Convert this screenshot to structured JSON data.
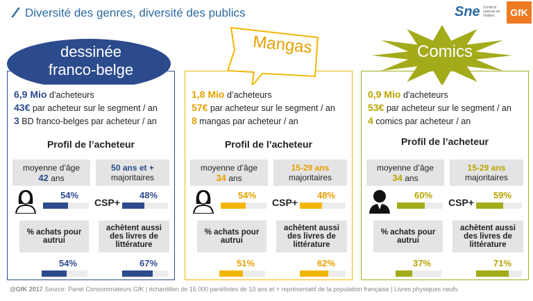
{
  "header": {
    "title": "Diversité des genres, diversité des publics"
  },
  "logos": {
    "sne": "Sne",
    "sne_caption": "Syndicat national de l'édition",
    "gfk": "GfK"
  },
  "panels": [
    {
      "heading": [
        "dessinée",
        "franco-belge"
      ],
      "color": "#2c4b8c",
      "accent": "#2c4b8c",
      "stats": [
        {
          "figure": "6,9 Mio",
          "text": "d’acheteurs"
        },
        {
          "figure": "43€",
          "text": "par acheteur sur le segment / an"
        },
        {
          "figure": "3",
          "text": "BD franco-belges par acheteur / an"
        }
      ],
      "profile_title": "Profil de l’acheteur",
      "age_label": "moyenne d’âge",
      "age_value": "42",
      "age_unit": "ans",
      "majority": "50 ans et +",
      "majority_caption": "majoritaires",
      "csp_label": "CSP+",
      "share_label": "% achats pour autrui",
      "also_label": "achètent aussi des livres de littérature",
      "bars": {
        "values": [
          54,
          48,
          54,
          67
        ],
        "value_labels": [
          "54%",
          "48%",
          "54%",
          "67%"
        ]
      }
    },
    {
      "heading": [
        "Mangas"
      ],
      "color": "#f2b705",
      "accent": "#e8a000",
      "stats": [
        {
          "figure": "1,8 Mio",
          "text": "d’acheteurs"
        },
        {
          "figure": "57€",
          "text": "par acheteur sur le segment / an"
        },
        {
          "figure": "8",
          "text": "mangas par acheteur / an"
        }
      ],
      "profile_title": "Profil de l’acheteur",
      "age_label": "moyenne d’âge",
      "age_value": "34",
      "age_unit": "ans",
      "majority": "15-29 ans",
      "majority_caption": "majoritaires",
      "csp_label": "CSP+",
      "share_label": "% achats pour autrui",
      "also_label": "achètent aussi des livres de littérature",
      "bars": {
        "values": [
          54,
          48,
          51,
          62
        ],
        "value_labels": [
          "54%",
          "48%",
          "51%",
          "62%"
        ]
      }
    },
    {
      "heading": [
        "Comics"
      ],
      "color": "#a3ab1a",
      "accent": "#b8a400",
      "stats": [
        {
          "figure": "0,9 Mio",
          "text": "d’acheteurs"
        },
        {
          "figure": "53€",
          "text": "par acheteur sur le segment / an"
        },
        {
          "figure": "4",
          "text": "comics par acheteur / an"
        }
      ],
      "profile_title": "Profil de l’acheteur",
      "age_label": "moyenne d’âge",
      "age_value": "34",
      "age_unit": "ans",
      "majority": "15-29 ans",
      "majority_caption": "majoritaires",
      "csp_label": "CSP+",
      "share_label": "% achats pour autrui",
      "also_label": "achètent aussi des livres de littérature",
      "bars": {
        "values": [
          60,
          59,
          37,
          71
        ],
        "value_labels": [
          "60%",
          "59%",
          "37%",
          "71%"
        ]
      }
    }
  ],
  "footer": {
    "owner": "@GfK 2017",
    "text": "Source: Panel Consommateurs GfK | échantillon de 15 000 panélistes de 10 ans et + représentatif de la population française | Livres  physiques neufs"
  }
}
